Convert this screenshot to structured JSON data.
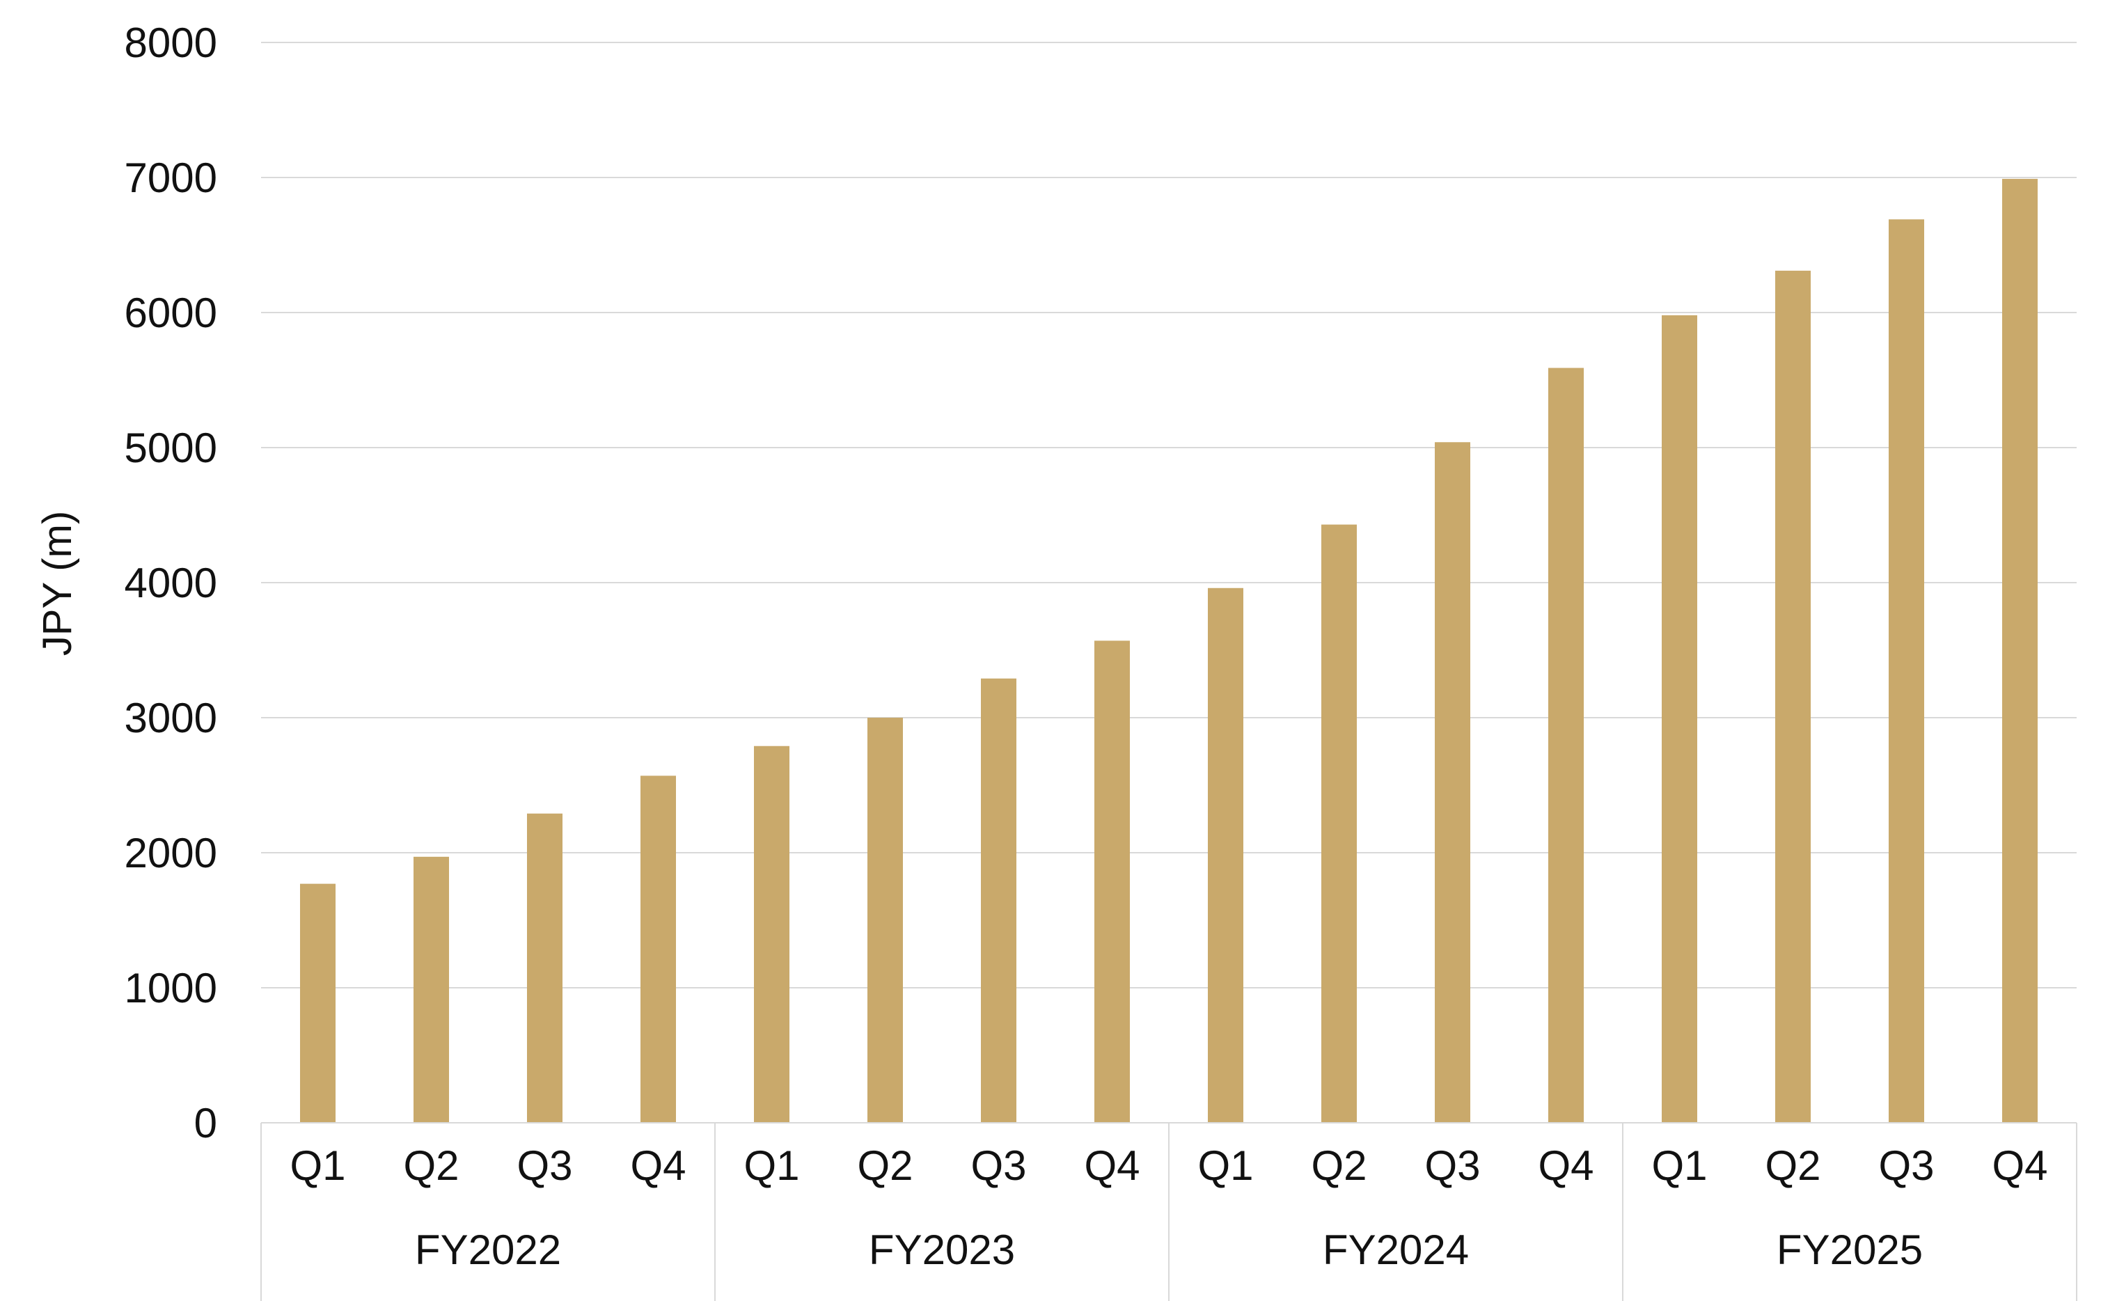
{
  "chart_data": {
    "type": "bar",
    "title": "",
    "xlabel": "",
    "ylabel": "JPY (m)",
    "ylim": [
      0,
      8000
    ],
    "yticks": [
      0,
      1000,
      2000,
      3000,
      4000,
      5000,
      6000,
      7000,
      8000
    ],
    "grid": true,
    "legend": "none",
    "bar_color": "#c9a96b",
    "groups": [
      {
        "label": "FY2022",
        "categories": [
          "Q1",
          "Q2",
          "Q3",
          "Q4"
        ]
      },
      {
        "label": "FY2023",
        "categories": [
          "Q1",
          "Q2",
          "Q3",
          "Q4"
        ]
      },
      {
        "label": "FY2024",
        "categories": [
          "Q1",
          "Q2",
          "Q3",
          "Q4"
        ]
      },
      {
        "label": "FY2025",
        "categories": [
          "Q1",
          "Q2",
          "Q3",
          "Q4"
        ]
      }
    ],
    "values": [
      1770,
      1970,
      2290,
      2570,
      2790,
      3000,
      3290,
      3570,
      3960,
      4430,
      5040,
      5590,
      5980,
      6310,
      6690,
      6990
    ]
  }
}
